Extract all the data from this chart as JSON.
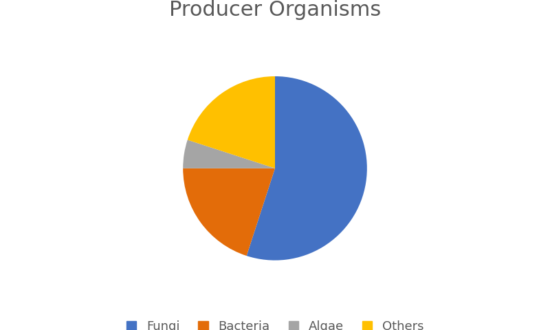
{
  "title": "Producer Organisms",
  "labels": [
    "Fungi",
    "Bacteria",
    "Algae",
    "Others"
  ],
  "values": [
    55,
    20,
    5,
    20
  ],
  "colors": [
    "#4472C4",
    "#E36C09",
    "#A5A5A5",
    "#FFC000"
  ],
  "title_fontsize": 22,
  "title_color": "#595959",
  "legend_fontsize": 13,
  "legend_text_color": "#595959",
  "background_color": "#FFFFFF",
  "startangle": 90
}
